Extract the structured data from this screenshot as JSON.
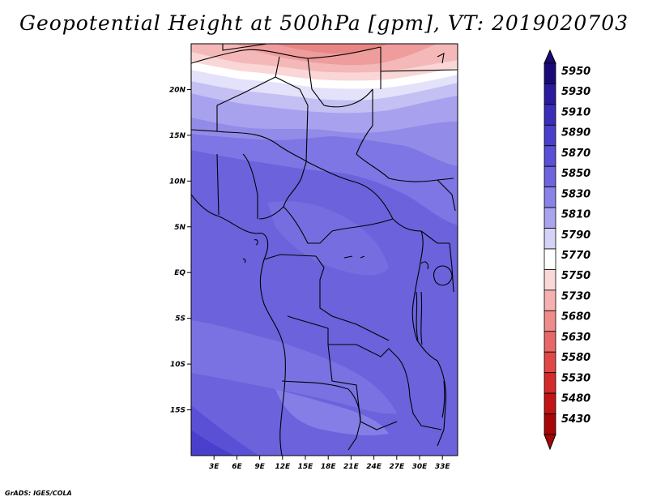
{
  "title": "Geopotential Height at 500hPa [gpm], VT: 2019020703",
  "credit": "GrADS: IGES/COLA",
  "map": {
    "lon_range": [
      0,
      35
    ],
    "lat_range": [
      -20,
      25
    ],
    "x_ticks": [
      "3E",
      "6E",
      "9E",
      "12E",
      "15E",
      "18E",
      "21E",
      "24E",
      "27E",
      "30E",
      "33E"
    ],
    "y_ticks": [
      "20N",
      "15N",
      "10N",
      "5N",
      "EQ",
      "5S",
      "10S",
      "15S"
    ]
  },
  "colorbar": {
    "levels": [
      "5950",
      "5930",
      "5910",
      "5890",
      "5870",
      "5850",
      "5830",
      "5810",
      "5790",
      "5770",
      "5750",
      "5730",
      "5680",
      "5630",
      "5580",
      "5530",
      "5480",
      "5430"
    ],
    "colors": [
      "#1a0a78",
      "#2a1a9c",
      "#3a2db8",
      "#4a3fcc",
      "#5a50d6",
      "#6e64de",
      "#8a82e6",
      "#aaa4ee",
      "#d4d2f6",
      "#ffffff",
      "#fbd8d8",
      "#f5b0b0",
      "#ee8c8c",
      "#e86868",
      "#e04848",
      "#d42a2a",
      "#c21414",
      "#a60606"
    ]
  }
}
